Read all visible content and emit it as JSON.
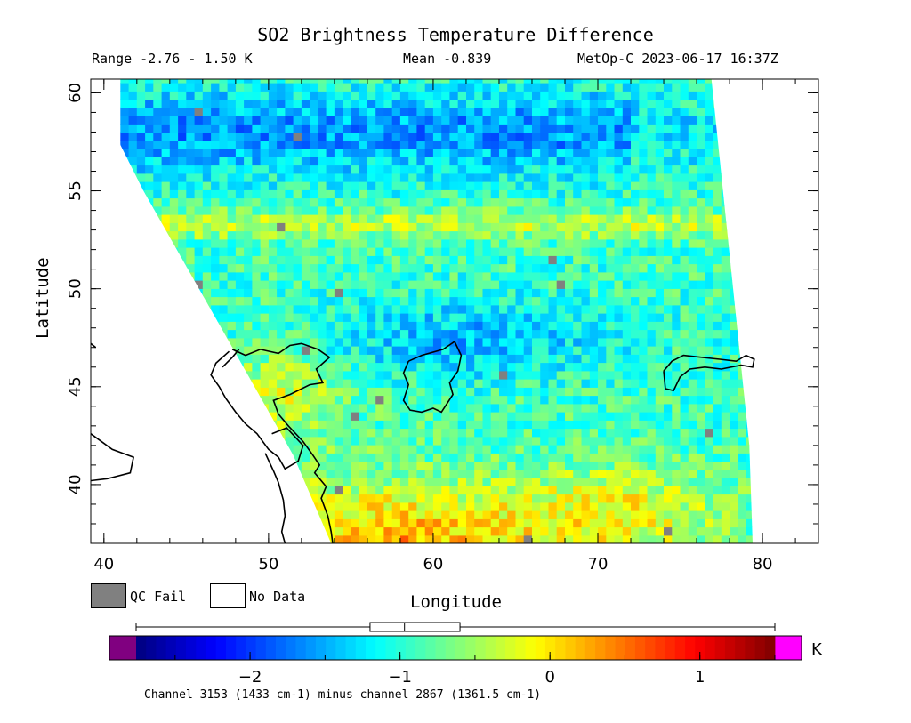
{
  "title": "SO2 Brightness Temperature Difference",
  "stats": {
    "range": "Range -2.76 - 1.50 K",
    "mean": "Mean -0.839",
    "satellite_time": "MetOp-C 2023-06-17 16:37Z"
  },
  "legend": {
    "qc_fail": "QC Fail",
    "no_data": "No Data"
  },
  "colorbar": {
    "unit": "K",
    "min": -2.76,
    "max": 1.5,
    "ticks": [
      "-2",
      "-1",
      "0",
      "1"
    ],
    "boxplot": {
      "whisker_low": -2.76,
      "q1": -1.2,
      "median": -0.97,
      "q3": -0.6,
      "whisker_high": 1.5
    },
    "under_color": "#800080",
    "over_color": "#ff00ff"
  },
  "footnote": "Channel 3153 (1433 cm-1) minus channel 2867 (1361.5 cm-1)",
  "chart_data": {
    "type": "heatmap",
    "title": "SO2 Brightness Temperature Difference",
    "xlabel": "Longitude",
    "ylabel": "Latitude",
    "xlim": [
      39.2,
      83.4
    ],
    "ylim": [
      37.0,
      60.7
    ],
    "xticks": [
      "40",
      "50",
      "60",
      "70",
      "80"
    ],
    "yticks": [
      "40",
      "45",
      "50",
      "55",
      "60"
    ],
    "value_unit": "K",
    "value_range": [
      -2.76,
      1.5
    ],
    "mean": -0.839,
    "colormap": "jet",
    "qc_fail_color": "#808080",
    "no_data_color": "#ffffff",
    "swath": {
      "west_edge": [
        [
          42.4,
          55.0
        ],
        [
          47.8,
          47.0
        ],
        [
          51.5,
          41.5
        ],
        [
          53.8,
          37.0
        ]
      ],
      "east_edge": [
        [
          76.9,
          60.7
        ],
        [
          79.2,
          42.0
        ],
        [
          79.4,
          37.0
        ]
      ]
    },
    "features": [
      {
        "name": "high values",
        "approx_value": 1.4,
        "region": "south-west corner",
        "lon": 55,
        "lat": 37.5
      },
      {
        "name": "low values",
        "approx_value": -2.0,
        "region": "northern band",
        "lon": 52,
        "lat": 58
      },
      {
        "name": "low values",
        "approx_value": -1.8,
        "region": "central",
        "lon": 62,
        "lat": 47.5
      }
    ]
  }
}
